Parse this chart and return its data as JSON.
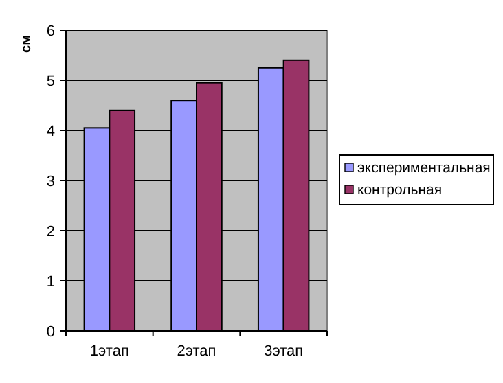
{
  "chart_data": {
    "type": "bar",
    "ylabel": "см",
    "categories": [
      "1этап",
      "2этап",
      "3этап"
    ],
    "series": [
      {
        "name": "экспериментальная",
        "color": "#9999ff",
        "values": [
          4.05,
          4.6,
          5.25
        ]
      },
      {
        "name": "контрольная",
        "color": "#993366",
        "values": [
          4.4,
          4.95,
          5.4
        ]
      }
    ],
    "ylim": [
      0,
      6
    ],
    "yticks": [
      0,
      1,
      2,
      3,
      4,
      5,
      6
    ],
    "grid": "y",
    "legend": "right"
  }
}
